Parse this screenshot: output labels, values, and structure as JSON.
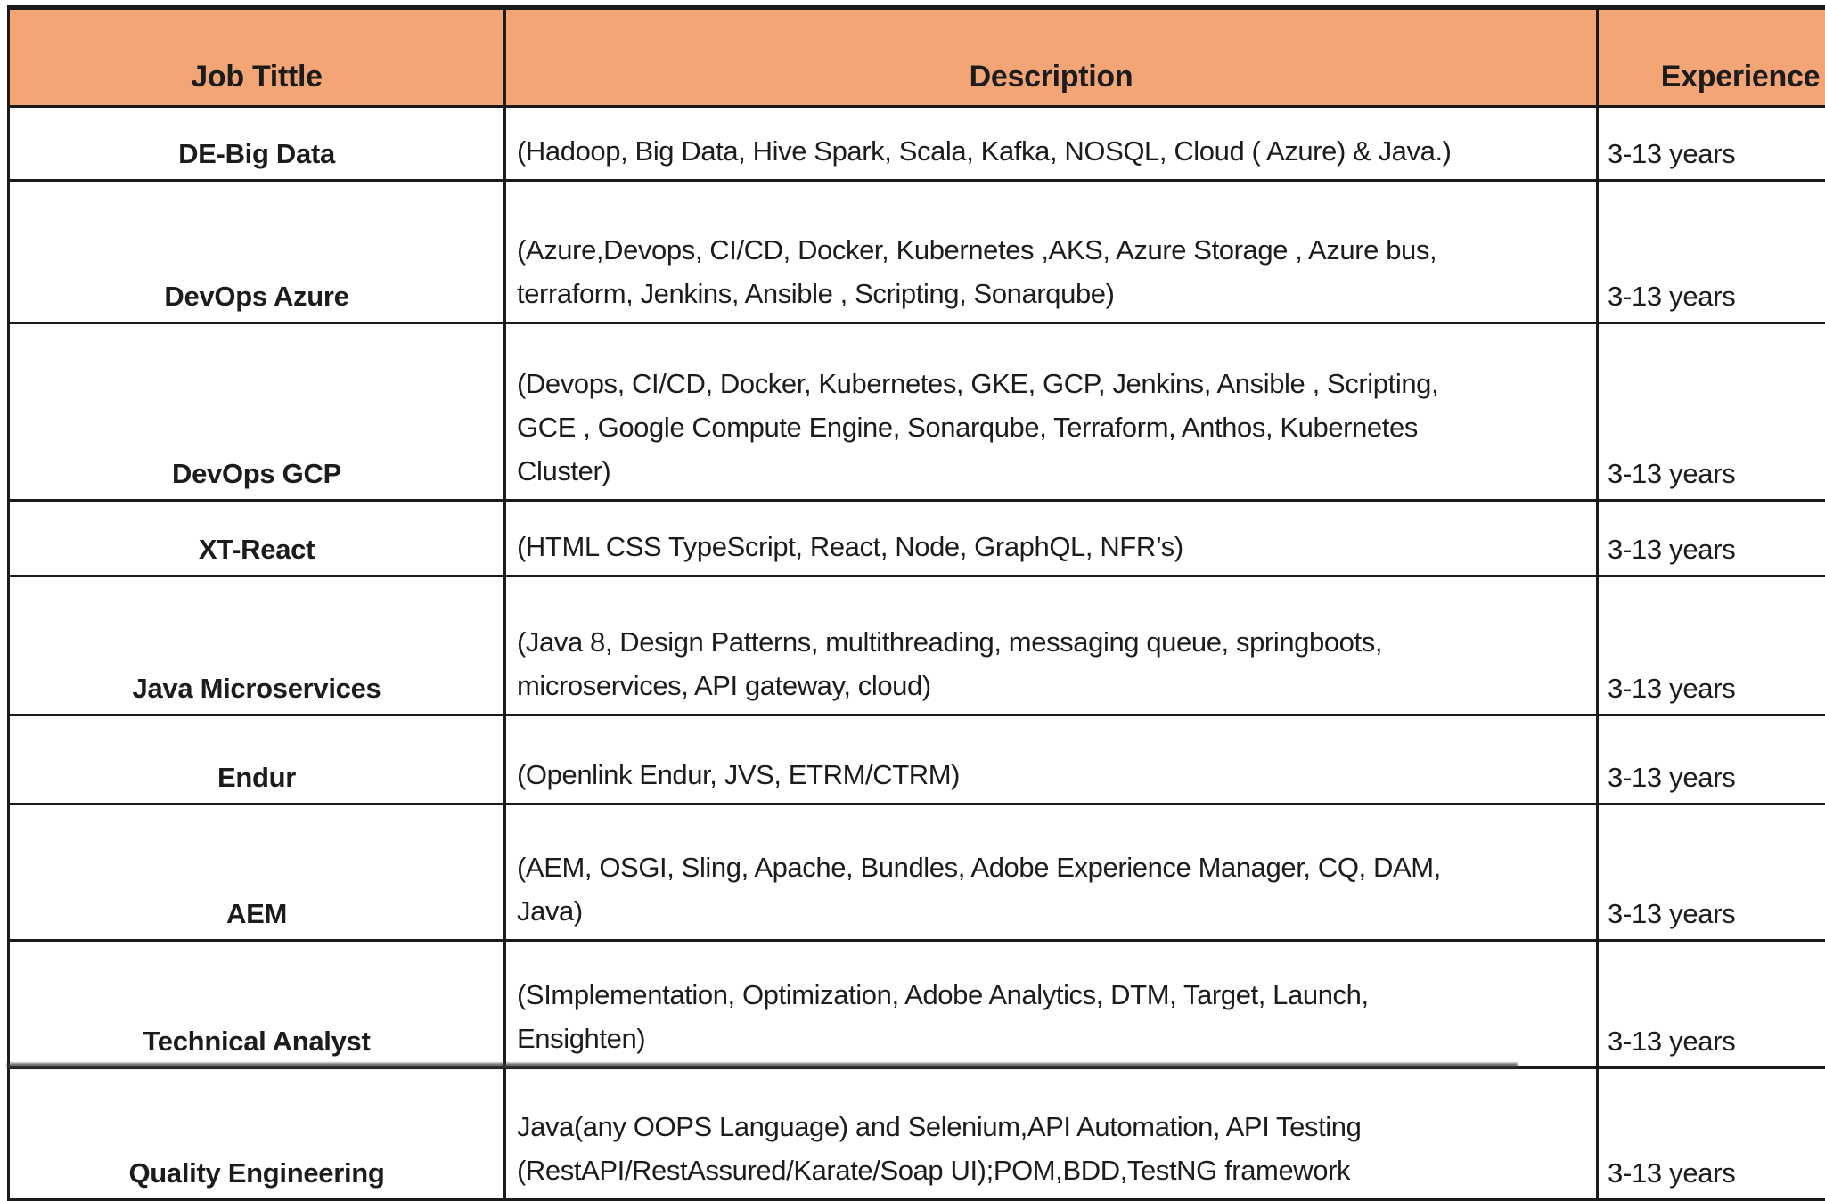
{
  "table": {
    "columns": [
      {
        "label": "Job Tittle"
      },
      {
        "label": "Description"
      },
      {
        "label": "Experience"
      }
    ],
    "rows": [
      {
        "title": "DE-Big Data",
        "description": "(Hadoop, Big Data, Hive Spark, Scala, Kafka, NOSQL, Cloud ( Azure) & Java.)",
        "experience": "3-13 years"
      },
      {
        "title": "DevOps Azure",
        "description": "(Azure,Devops, CI/CD, Docker, Kubernetes ,AKS, Azure Storage , Azure bus,\nterraform, Jenkins, Ansible , Scripting, Sonarqube)",
        "experience": "3-13 years"
      },
      {
        "title": "DevOps GCP",
        "description": "(Devops, CI/CD, Docker, Kubernetes, GKE, GCP, Jenkins, Ansible , Scripting,\nGCE , Google Compute Engine, Sonarqube, Terraform, Anthos, Kubernetes\nCluster)",
        "experience": "3-13 years"
      },
      {
        "title": "XT-React",
        "description": "(HTML CSS TypeScript, React, Node, GraphQL, NFR’s)",
        "experience": "3-13 years"
      },
      {
        "title": "Java Microservices",
        "description": "(Java 8, Design Patterns, multithreading, messaging queue, springboots,\nmicroservices, API gateway, cloud)",
        "experience": "3-13 years"
      },
      {
        "title": "Endur",
        "description": "(Openlink Endur, JVS, ETRM/CTRM)",
        "experience": "3-13 years"
      },
      {
        "title": "AEM",
        "description": "(AEM, OSGI, Sling, Apache, Bundles, Adobe Experience Manager, CQ, DAM,\nJava)",
        "experience": "3-13 years"
      },
      {
        "title": "Technical Analyst",
        "description": "(SImplementation, Optimization, Adobe Analytics, DTM, Target, Launch,\nEnsighten)",
        "experience": "3-13 years"
      },
      {
        "title": "Quality Engineering",
        "description": "Java(any OOPS Language) and Selenium,API Automation, API Testing\n(RestAPI/RestAssured/Karate/Soap UI);POM,BDD,TestNG framework",
        "experience": "3-13 years"
      }
    ]
  },
  "colors": {
    "header_bg": "#f3a576",
    "border": "#1b1b1b",
    "text": "#1c1c1c"
  }
}
